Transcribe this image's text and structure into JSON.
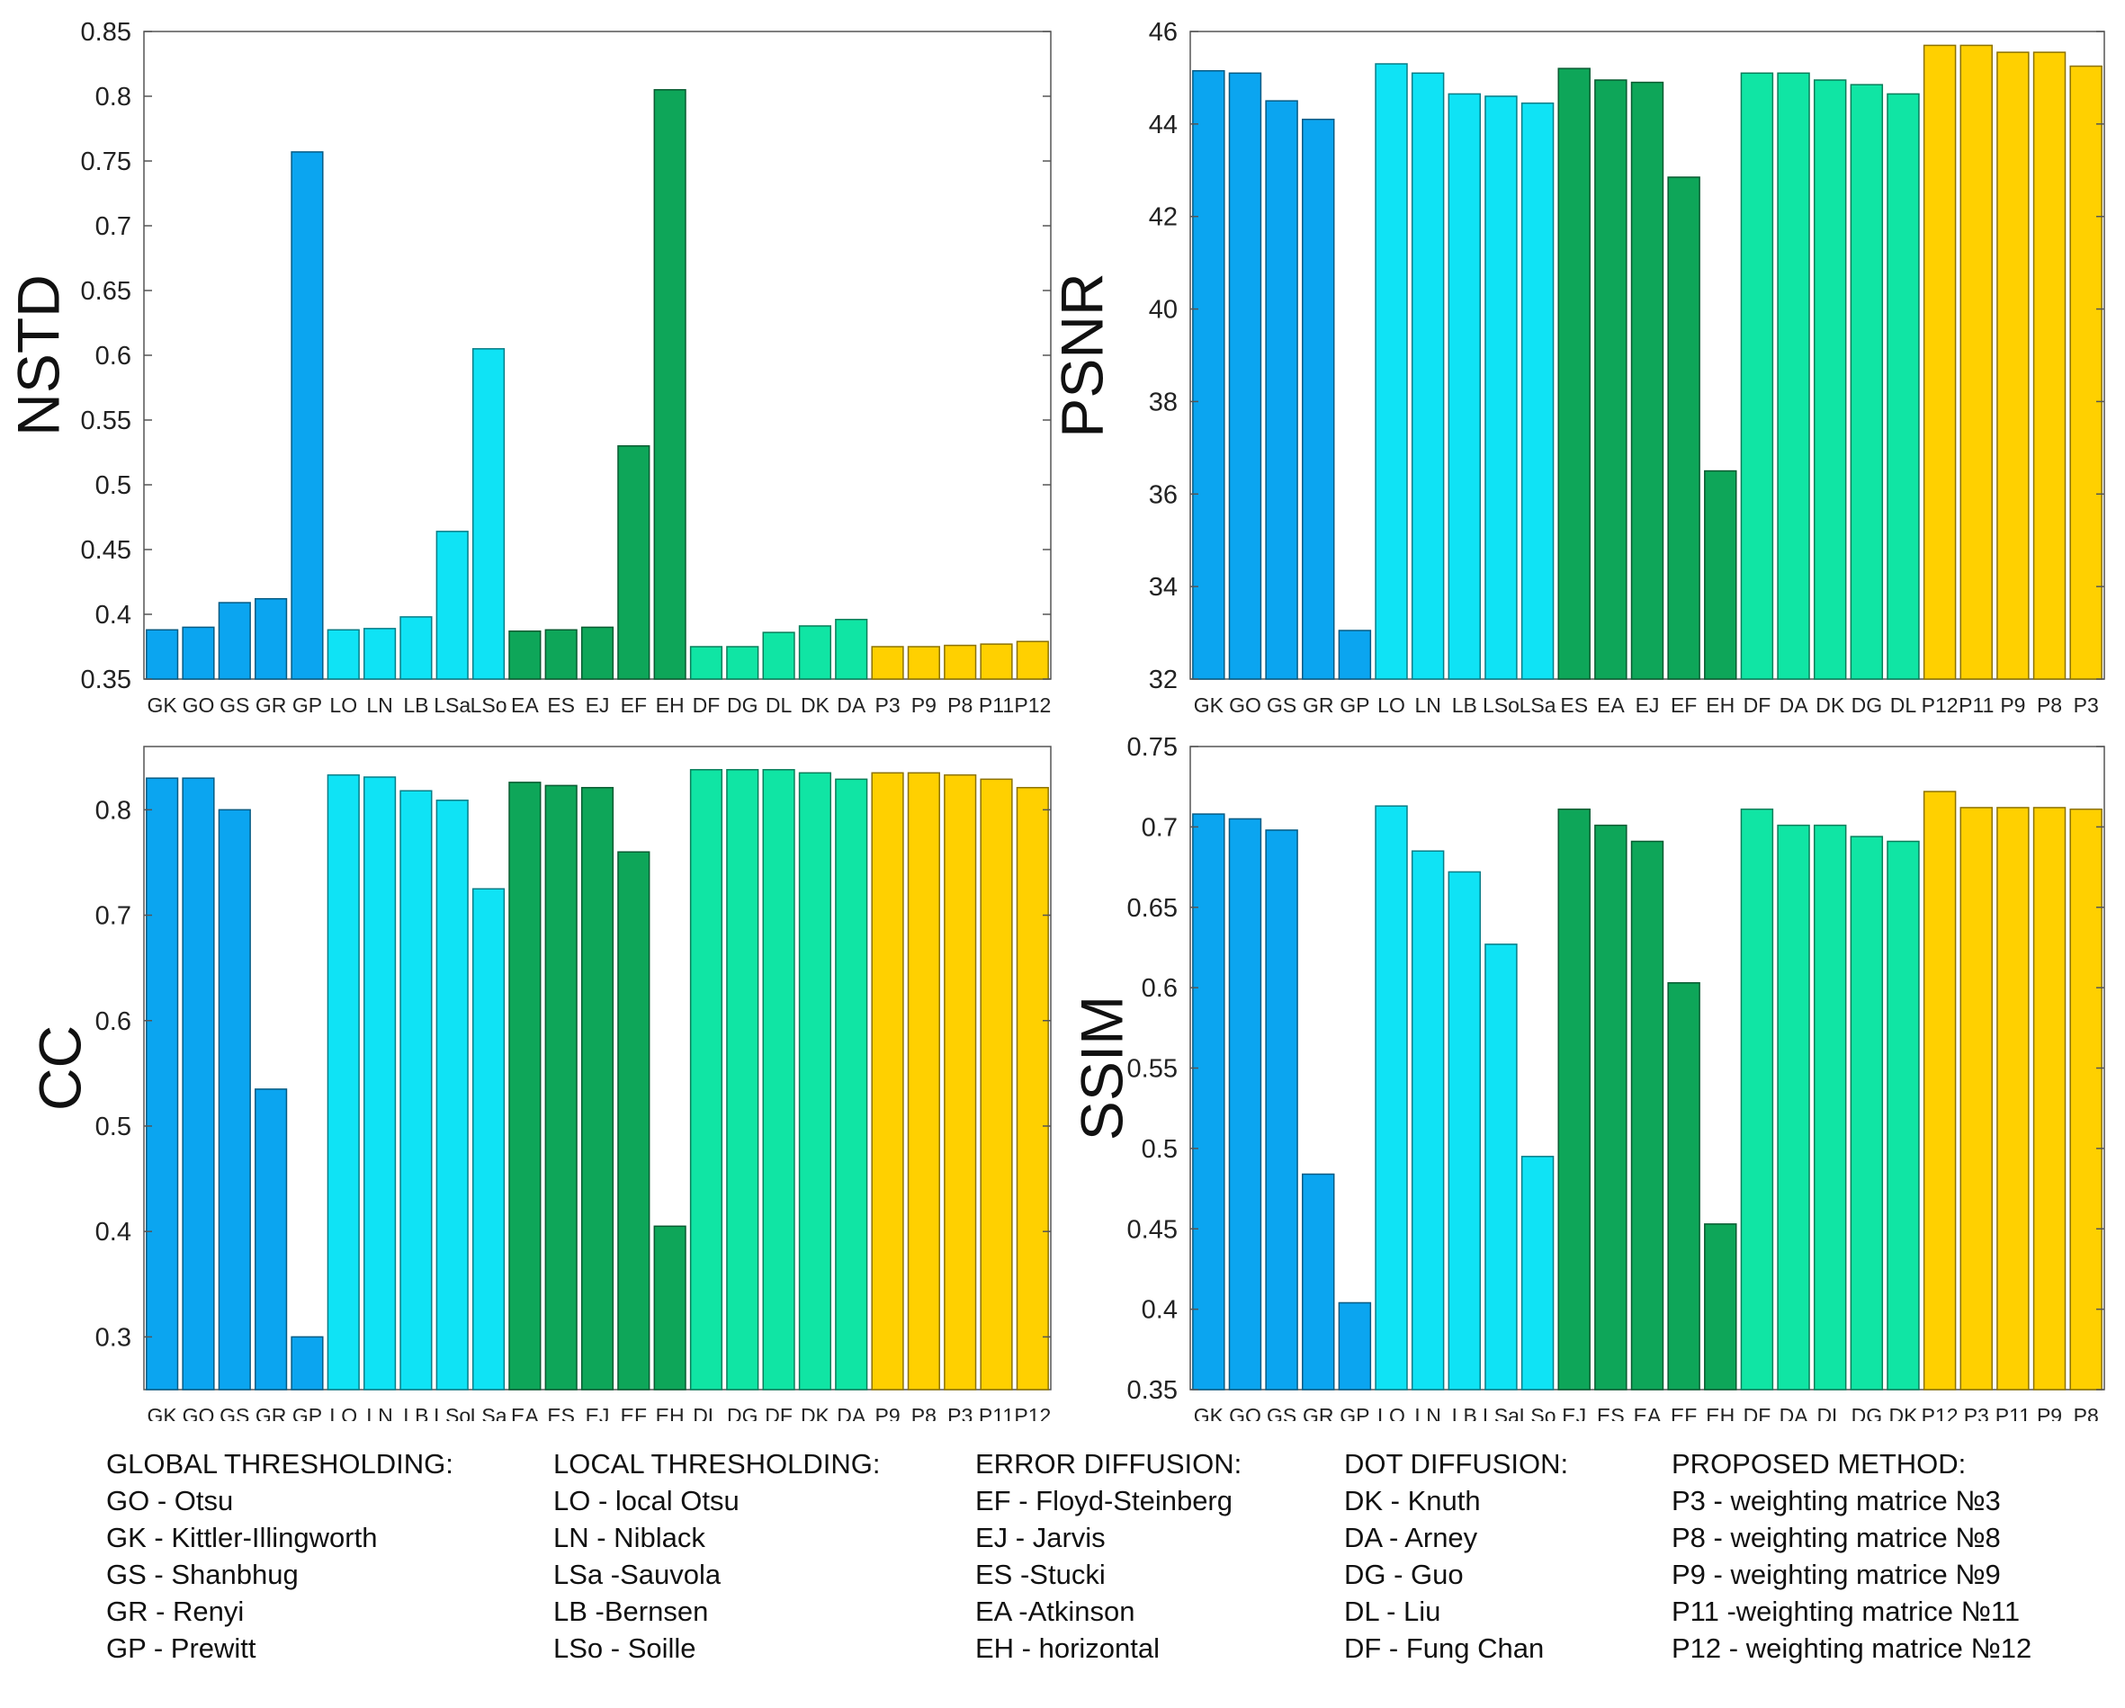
{
  "colors": {
    "global": "#0ba5f0",
    "local": "#0fe3f5",
    "error": "#0ea659",
    "dot": "#10e5a4",
    "proposed": "#ffd000"
  },
  "chart_data": [
    {
      "type": "bar",
      "ylabel": "NSTD",
      "ylim": [
        0.35,
        0.85
      ],
      "ticks": [
        "0.35",
        "0.4",
        "0.45",
        "0.5",
        "0.55",
        "0.6",
        "0.65",
        "0.7",
        "0.75",
        "0.8",
        "0.85"
      ],
      "categories": [
        "GK",
        "GO",
        "GS",
        "GR",
        "GP",
        "LO",
        "LN",
        "LB",
        "LSa",
        "LSo",
        "EA",
        "ES",
        "EJ",
        "EF",
        "EH",
        "DF",
        "DG",
        "DL",
        "DK",
        "DA",
        "P3",
        "P9",
        "P8",
        "P11",
        "P12"
      ],
      "groups": [
        "global",
        "global",
        "global",
        "global",
        "global",
        "local",
        "local",
        "local",
        "local",
        "local",
        "error",
        "error",
        "error",
        "error",
        "error",
        "dot",
        "dot",
        "dot",
        "dot",
        "dot",
        "proposed",
        "proposed",
        "proposed",
        "proposed",
        "proposed"
      ],
      "values": [
        0.388,
        0.39,
        0.409,
        0.412,
        0.757,
        0.388,
        0.389,
        0.398,
        0.464,
        0.605,
        0.387,
        0.388,
        0.39,
        0.53,
        0.805,
        0.375,
        0.375,
        0.386,
        0.391,
        0.396,
        0.375,
        0.375,
        0.376,
        0.377,
        0.379
      ]
    },
    {
      "type": "bar",
      "ylabel": "PSNR",
      "ylim": [
        32,
        46
      ],
      "ticks": [
        "32",
        "34",
        "36",
        "38",
        "40",
        "42",
        "44",
        "46"
      ],
      "categories": [
        "GK",
        "GO",
        "GS",
        "GR",
        "GP",
        "LO",
        "LN",
        "LB",
        "LSo",
        "LSa",
        "ES",
        "EA",
        "EJ",
        "EF",
        "EH",
        "DF",
        "DA",
        "DK",
        "DG",
        "DL",
        "P12",
        "P11",
        "P9",
        "P8",
        "P3"
      ],
      "groups": [
        "global",
        "global",
        "global",
        "global",
        "global",
        "local",
        "local",
        "local",
        "local",
        "local",
        "error",
        "error",
        "error",
        "error",
        "error",
        "dot",
        "dot",
        "dot",
        "dot",
        "dot",
        "proposed",
        "proposed",
        "proposed",
        "proposed",
        "proposed"
      ],
      "values": [
        45.15,
        45.1,
        44.5,
        44.1,
        33.05,
        45.3,
        45.1,
        44.65,
        44.6,
        44.45,
        45.2,
        44.95,
        44.9,
        42.85,
        36.5,
        45.1,
        45.1,
        44.95,
        44.85,
        44.65,
        45.7,
        45.7,
        45.55,
        45.55,
        45.25
      ]
    },
    {
      "type": "bar",
      "ylabel": "CC",
      "ylim": [
        0.25,
        0.86
      ],
      "ticks": [
        "0.3",
        "0.4",
        "0.5",
        "0.6",
        "0.7",
        "0.8"
      ],
      "categories": [
        "GK",
        "GO",
        "GS",
        "GR",
        "GP",
        "LO",
        "LN",
        "LB",
        "LSo",
        "LSa",
        "EA",
        "ES",
        "EJ",
        "EF",
        "EH",
        "DL",
        "DG",
        "DF",
        "DK",
        "DA",
        "P9",
        "P8",
        "P3",
        "P11",
        "P12"
      ],
      "groups": [
        "global",
        "global",
        "global",
        "global",
        "global",
        "local",
        "local",
        "local",
        "local",
        "local",
        "error",
        "error",
        "error",
        "error",
        "error",
        "dot",
        "dot",
        "dot",
        "dot",
        "dot",
        "proposed",
        "proposed",
        "proposed",
        "proposed",
        "proposed"
      ],
      "values": [
        0.83,
        0.83,
        0.8,
        0.535,
        0.3,
        0.833,
        0.831,
        0.818,
        0.809,
        0.725,
        0.826,
        0.823,
        0.821,
        0.76,
        0.405,
        0.838,
        0.838,
        0.838,
        0.835,
        0.829,
        0.835,
        0.835,
        0.833,
        0.829,
        0.821
      ]
    },
    {
      "type": "bar",
      "ylabel": "SSIM",
      "ylim": [
        0.35,
        0.75
      ],
      "ticks": [
        "0.35",
        "0.4",
        "0.45",
        "0.5",
        "0.55",
        "0.6",
        "0.65",
        "0.7",
        "0.75"
      ],
      "categories": [
        "GK",
        "GO",
        "GS",
        "GR",
        "GP",
        "LO",
        "LN",
        "LB",
        "LSa",
        "LSo",
        "EJ",
        "ES",
        "EA",
        "EF",
        "EH",
        "DF",
        "DA",
        "DL",
        "DG",
        "DK",
        "P12",
        "P3",
        "P11",
        "P9",
        "P8"
      ],
      "groups": [
        "global",
        "global",
        "global",
        "global",
        "global",
        "local",
        "local",
        "local",
        "local",
        "local",
        "error",
        "error",
        "error",
        "error",
        "error",
        "dot",
        "dot",
        "dot",
        "dot",
        "dot",
        "proposed",
        "proposed",
        "proposed",
        "proposed",
        "proposed"
      ],
      "values": [
        0.708,
        0.705,
        0.698,
        0.484,
        0.404,
        0.713,
        0.685,
        0.672,
        0.627,
        0.495,
        0.711,
        0.701,
        0.691,
        0.603,
        0.453,
        0.711,
        0.701,
        0.701,
        0.694,
        0.691,
        0.722,
        0.712,
        0.712,
        0.712,
        0.711
      ]
    }
  ],
  "legend": {
    "global": {
      "heading": "GLOBAL THRESHOLDING:",
      "items": [
        "GO - Otsu",
        "GK - Kittler-Illingworth",
        "GS - Shanbhug",
        "GR - Renyi",
        "GP - Prewitt"
      ]
    },
    "local": {
      "heading": "LOCAL THRESHOLDING:",
      "items": [
        "LO - local Otsu",
        "LN - Niblack",
        "LSa -Sauvola",
        "LB -Bernsen",
        "LSo - Soille"
      ]
    },
    "error": {
      "heading": "ERROR DIFFUSION:",
      "items": [
        "EF - Floyd-Steinberg",
        "EJ - Jarvis",
        "ES -Stucki",
        "EA -Atkinson",
        "EH - horizontal"
      ]
    },
    "dot": {
      "heading": "DOT DIFFUSION:",
      "items": [
        "DK - Knuth",
        "DA - Arney",
        "DG - Guo",
        "DL - Liu",
        "DF - Fung Chan"
      ]
    },
    "proposed": {
      "heading": "PROPOSED METHOD:",
      "items": [
        "P3 - weighting matrice №3",
        "P8 - weighting matrice №8",
        "P9 - weighting matrice №9",
        "P11 -weighting matrice №11",
        "P12 - weighting matrice №12"
      ]
    }
  }
}
